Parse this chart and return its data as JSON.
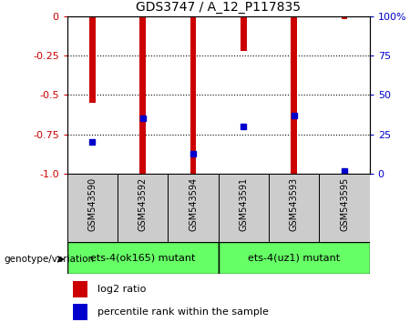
{
  "title": "GDS3747 / A_12_P117835",
  "samples": [
    "GSM543590",
    "GSM543592",
    "GSM543594",
    "GSM543591",
    "GSM543593",
    "GSM543595"
  ],
  "log2_ratio": [
    -0.55,
    -1.0,
    -1.0,
    -0.22,
    -1.0,
    -0.02
  ],
  "percentile_rank": [
    20,
    35,
    13,
    30,
    37,
    2
  ],
  "ylim_left": [
    -1.0,
    0.0
  ],
  "ylim_right": [
    0,
    100
  ],
  "yticks_left": [
    0,
    -0.25,
    -0.5,
    -0.75,
    -1.0
  ],
  "yticks_right": [
    100,
    75,
    50,
    25,
    0
  ],
  "groups": [
    {
      "label": "ets-4(ok165) mutant",
      "color": "#66FF66",
      "start": 0,
      "end": 3
    },
    {
      "label": "ets-4(uz1) mutant",
      "color": "#66FF66",
      "start": 3,
      "end": 6
    }
  ],
  "bar_color": "#CC0000",
  "blue_marker_color": "#0000CC",
  "left_label_color": "#CC0000",
  "right_label_color": "#0000CC",
  "title_color": "#000000",
  "background_color": "#ffffff",
  "sample_bg_color": "#cccccc",
  "genotype_label": "genotype/variation",
  "legend_items": [
    "log2 ratio",
    "percentile rank within the sample"
  ],
  "bar_width": 0.12
}
